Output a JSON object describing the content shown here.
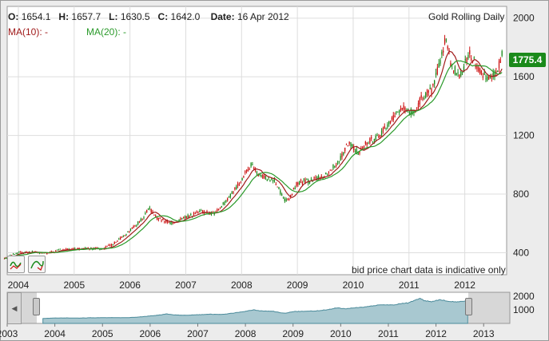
{
  "header": {
    "open_label": "O:",
    "open_value": "1654.1",
    "high_label": "H:",
    "high_value": "1657.7",
    "low_label": "L:",
    "low_value": "1630.5",
    "close_label": "C:",
    "close_value": "1642.0",
    "date_label": "Date:",
    "date_value": "16 Apr 2012",
    "ma10": "MA(10): -",
    "ma20": "MA(20): -",
    "instrument": "Gold Rolling Daily"
  },
  "last_price": "1775.4",
  "disclaimer": "bid price chart data is indicative only",
  "colors": {
    "up": "#1a8a1a",
    "down": "#cc1111",
    "ma10": "#a01a1a",
    "ma20": "#2a9a2a",
    "navigator_fill": "#a8c8d0"
  },
  "chart_data": {
    "type": "line",
    "x_dates": [
      "2003-10",
      "2004-01",
      "2004-04",
      "2004-07",
      "2004-10",
      "2005-01",
      "2005-04",
      "2005-07",
      "2005-10",
      "2006-01",
      "2006-04",
      "2006-05",
      "2006-07",
      "2006-10",
      "2007-01",
      "2007-04",
      "2007-07",
      "2007-10",
      "2008-01",
      "2008-03",
      "2008-05",
      "2008-08",
      "2008-10",
      "2008-11",
      "2009-01",
      "2009-04",
      "2009-07",
      "2009-10",
      "2009-12",
      "2010-02",
      "2010-04",
      "2010-07",
      "2010-10",
      "2010-12",
      "2011-02",
      "2011-04",
      "2011-06",
      "2011-08",
      "2011-09",
      "2011-10",
      "2011-12",
      "2012-02",
      "2012-04",
      "2012-06",
      "2012-08",
      "2012-09"
    ],
    "series": [
      {
        "name": "Gold Rolling Daily",
        "values": [
          360,
          400,
          405,
          395,
          420,
          425,
          430,
          425,
          470,
          550,
          640,
          710,
          630,
          600,
          640,
          680,
          665,
          760,
          900,
          1000,
          920,
          900,
          770,
          750,
          880,
          890,
          930,
          1030,
          1150,
          1080,
          1150,
          1210,
          1340,
          1390,
          1350,
          1470,
          1510,
          1750,
          1880,
          1680,
          1600,
          1760,
          1650,
          1590,
          1620,
          1775
        ]
      }
    ],
    "y_ticks": [
      400,
      800,
      1200,
      1600,
      2000
    ],
    "ylim": [
      250,
      2080
    ],
    "x_tick_labels": [
      "2004",
      "2005",
      "2006",
      "2007",
      "2008",
      "2009",
      "2010",
      "2011",
      "2012"
    ],
    "navigator": {
      "x_tick_labels": [
        "2003",
        "2004",
        "2005",
        "2006",
        "2007",
        "2008",
        "2009",
        "2010",
        "2011",
        "2012",
        "2013"
      ],
      "y_ticks": [
        1000,
        2000
      ]
    }
  }
}
